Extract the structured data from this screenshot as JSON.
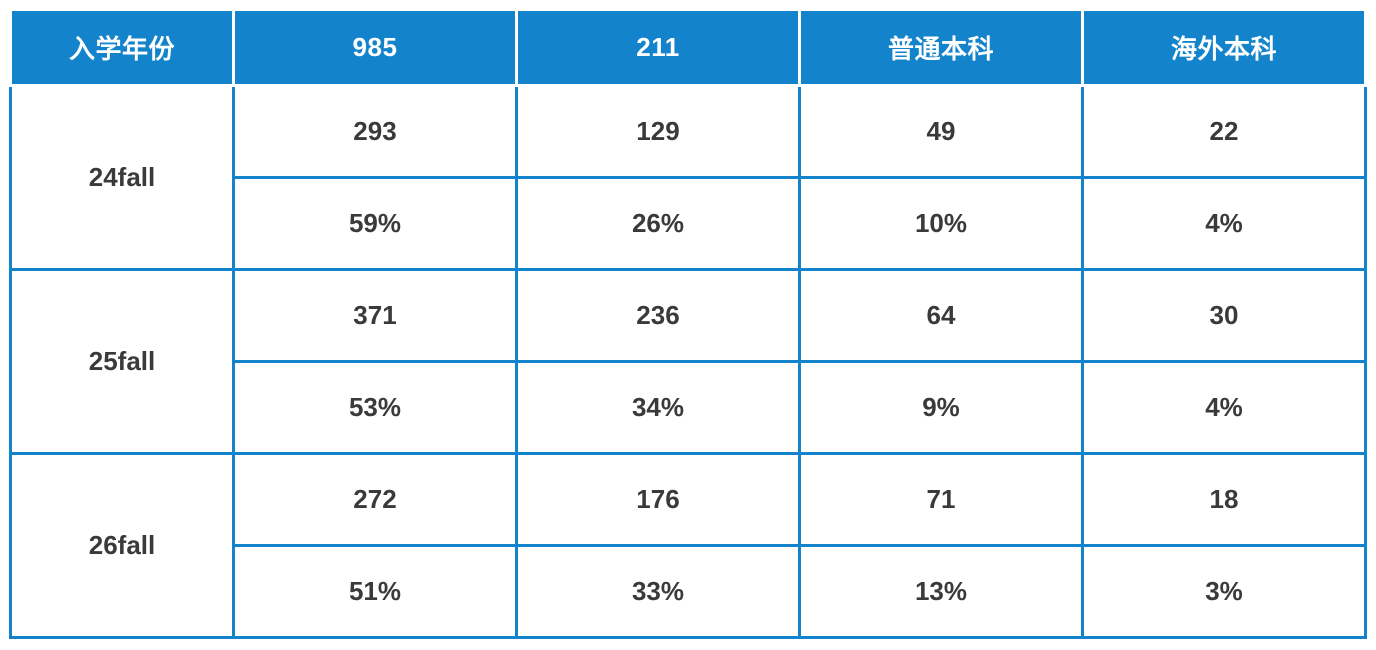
{
  "chart_data": {
    "type": "table",
    "columns": [
      "入学年份",
      "985",
      "211",
      "普通本科",
      "海外本科"
    ],
    "groups": [
      {
        "year": "24fall",
        "counts": [
          293,
          129,
          49,
          22
        ],
        "percents": [
          "59%",
          "26%",
          "10%",
          "4%"
        ]
      },
      {
        "year": "25fall",
        "counts": [
          371,
          236,
          64,
          30
        ],
        "percents": [
          "53%",
          "34%",
          "9%",
          "4%"
        ]
      },
      {
        "year": "26fall",
        "counts": [
          272,
          176,
          71,
          18
        ],
        "percents": [
          "51%",
          "33%",
          "13%",
          "3%"
        ]
      }
    ],
    "layout_hints": {
      "first_column_is_row_header": true,
      "each_group_has_two_rows": [
        "count",
        "percent_share"
      ],
      "grid": "on"
    }
  },
  "colors": {
    "accent": "#1384CC",
    "header_text": "#FFFFFF",
    "body_text": "#3A3A3A",
    "page_bg": "#FFFFFF"
  }
}
